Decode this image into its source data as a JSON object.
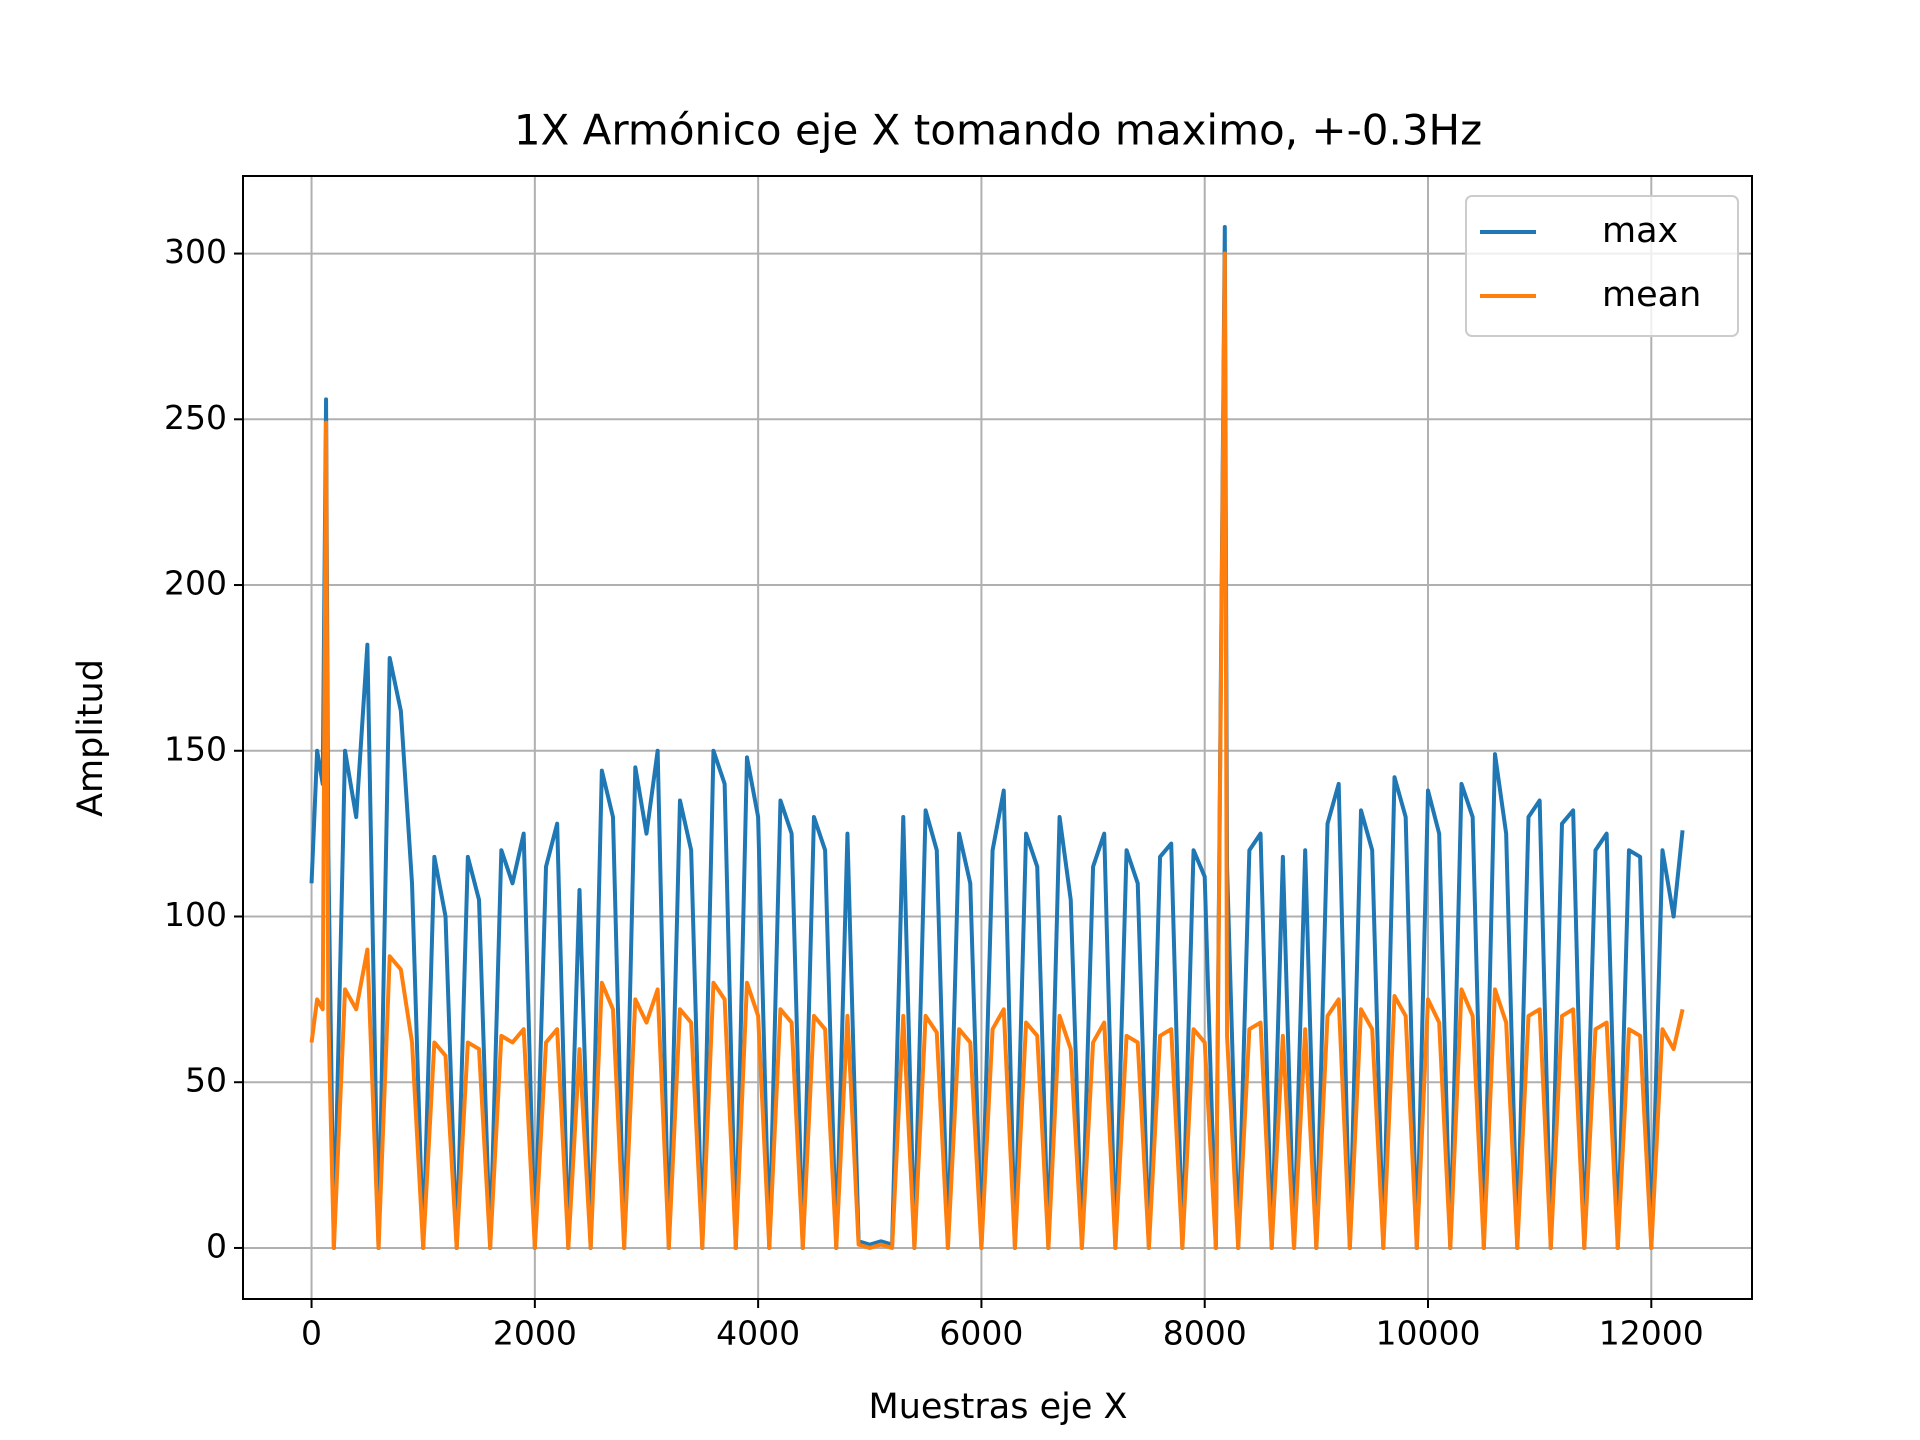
{
  "chart_data": {
    "type": "line",
    "title": "1X Armónico eje X tomando maximo, +-0.3Hz",
    "x_label": "Muestras eje X",
    "y_label": "Amplitud",
    "x": [
      0,
      50,
      100,
      130,
      150,
      200,
      300,
      400,
      500,
      600,
      700,
      800,
      900,
      1000,
      1100,
      1200,
      1300,
      1400,
      1500,
      1600,
      1700,
      1800,
      1900,
      2000,
      2100,
      2200,
      2300,
      2400,
      2500,
      2600,
      2700,
      2800,
      2900,
      3000,
      3100,
      3200,
      3300,
      3400,
      3500,
      3600,
      3700,
      3800,
      3900,
      4000,
      4100,
      4200,
      4300,
      4400,
      4500,
      4600,
      4700,
      4800,
      4900,
      5000,
      5100,
      5200,
      5300,
      5400,
      5500,
      5600,
      5700,
      5800,
      5900,
      6000,
      6100,
      6200,
      6300,
      6400,
      6500,
      6600,
      6700,
      6800,
      6900,
      7000,
      7100,
      7200,
      7300,
      7400,
      7500,
      7600,
      7700,
      7800,
      7900,
      8000,
      8100,
      8180,
      8200,
      8300,
      8400,
      8500,
      8600,
      8700,
      8800,
      8900,
      9000,
      9100,
      9200,
      9300,
      9400,
      9500,
      9600,
      9700,
      9800,
      9900,
      10000,
      10100,
      10200,
      10300,
      10400,
      10500,
      10600,
      10700,
      10800,
      10900,
      11000,
      11100,
      11200,
      11300,
      11400,
      11500,
      11600,
      11700,
      11800,
      11900,
      12000,
      12100,
      12200,
      12280
    ],
    "series": [
      {
        "name": "max",
        "color": "#1f77b4",
        "values": [
          110,
          150,
          140,
          256,
          120,
          0,
          150,
          130,
          182,
          0,
          178,
          162,
          110,
          0,
          118,
          100,
          0,
          118,
          105,
          0,
          120,
          110,
          125,
          0,
          115,
          128,
          0,
          108,
          0,
          144,
          130,
          0,
          145,
          125,
          150,
          0,
          135,
          120,
          0,
          150,
          140,
          0,
          148,
          130,
          0,
          135,
          125,
          0,
          130,
          120,
          0,
          125,
          2,
          1,
          2,
          1,
          130,
          0,
          132,
          120,
          0,
          125,
          110,
          0,
          120,
          138,
          0,
          125,
          115,
          0,
          130,
          105,
          0,
          115,
          125,
          0,
          120,
          110,
          0,
          118,
          122,
          0,
          120,
          112,
          0,
          308,
          115,
          0,
          120,
          125,
          0,
          118,
          0,
          120,
          0,
          128,
          140,
          0,
          132,
          120,
          0,
          142,
          130,
          0,
          138,
          125,
          0,
          140,
          130,
          0,
          149,
          125,
          0,
          130,
          135,
          0,
          128,
          132,
          0,
          120,
          125,
          0,
          120,
          118,
          0,
          120,
          100,
          126
        ]
      },
      {
        "name": "mean",
        "color": "#ff7f0e",
        "values": [
          62,
          75,
          72,
          249,
          70,
          0,
          78,
          72,
          90,
          0,
          88,
          84,
          62,
          0,
          62,
          58,
          0,
          62,
          60,
          0,
          64,
          62,
          66,
          0,
          62,
          66,
          0,
          60,
          0,
          80,
          72,
          0,
          75,
          68,
          78,
          0,
          72,
          68,
          0,
          80,
          75,
          0,
          80,
          70,
          0,
          72,
          68,
          0,
          70,
          66,
          0,
          70,
          1,
          0,
          1,
          0,
          70,
          0,
          70,
          65,
          0,
          66,
          62,
          0,
          66,
          72,
          0,
          68,
          64,
          0,
          70,
          60,
          0,
          62,
          68,
          0,
          64,
          62,
          0,
          64,
          66,
          0,
          66,
          62,
          0,
          300,
          64,
          0,
          66,
          68,
          0,
          64,
          0,
          66,
          0,
          70,
          75,
          0,
          72,
          66,
          0,
          76,
          70,
          0,
          75,
          68,
          0,
          78,
          70,
          0,
          78,
          68,
          0,
          70,
          72,
          0,
          70,
          72,
          0,
          66,
          68,
          0,
          66,
          64,
          0,
          66,
          60,
          72
        ]
      }
    ],
    "xlim": [
      -614,
      12902
    ],
    "xticks": [
      0,
      2000,
      4000,
      6000,
      8000,
      10000,
      12000
    ],
    "ylim": [
      -15.4,
      323.4
    ],
    "yticks": [
      0,
      50,
      100,
      150,
      200,
      250,
      300
    ],
    "grid": true,
    "legend": "upper right"
  }
}
